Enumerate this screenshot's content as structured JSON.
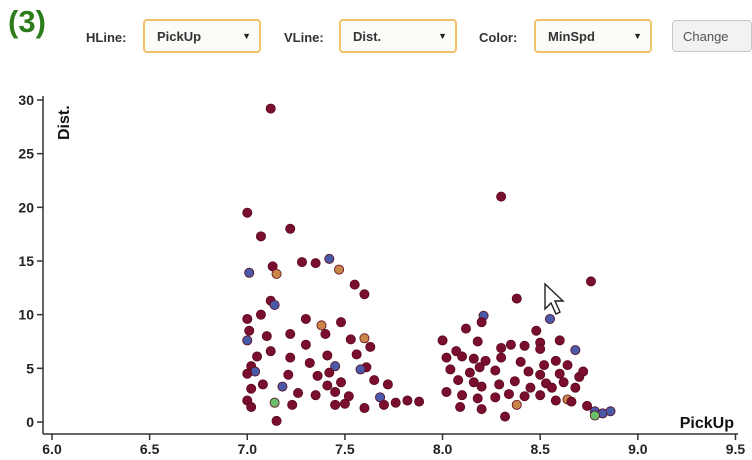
{
  "panel": {
    "label": "(3)"
  },
  "controls": {
    "hline": {
      "label": "HLine:",
      "value": "PickUp"
    },
    "vline": {
      "label": "VLine:",
      "value": "Dist."
    },
    "color": {
      "label": "Color:",
      "value": "MinSpd"
    },
    "change_button": "Change"
  },
  "colors": {
    "dark_red": "#7a0e2e",
    "blue": "#4a5aa8",
    "orange": "#c9854a",
    "green": "#6ac06a",
    "accent_border": "#f1c26a",
    "panel_label": "#2e7d1c"
  },
  "chart_data": {
    "type": "scatter",
    "xlabel": "PickUp",
    "ylabel": "Dist.",
    "xlim": [
      6.0,
      9.6
    ],
    "ylim": [
      0,
      30
    ],
    "xticks": [
      "6.0",
      "6.5",
      "7.0",
      "7.5",
      "8.0",
      "8.5",
      "9.0",
      "9.5"
    ],
    "yticks": [
      "0",
      "5",
      "10",
      "15",
      "20",
      "25",
      "30"
    ],
    "points": [
      {
        "x": 7.12,
        "y": 29.2,
        "c": "dark_red"
      },
      {
        "x": 8.3,
        "y": 21.0,
        "c": "dark_red"
      },
      {
        "x": 7.0,
        "y": 19.5,
        "c": "dark_red"
      },
      {
        "x": 7.22,
        "y": 18.0,
        "c": "dark_red"
      },
      {
        "x": 7.07,
        "y": 17.3,
        "c": "dark_red"
      },
      {
        "x": 7.42,
        "y": 15.2,
        "c": "blue"
      },
      {
        "x": 7.28,
        "y": 14.9,
        "c": "dark_red"
      },
      {
        "x": 7.35,
        "y": 14.8,
        "c": "dark_red"
      },
      {
        "x": 7.13,
        "y": 14.5,
        "c": "dark_red"
      },
      {
        "x": 7.01,
        "y": 13.9,
        "c": "blue"
      },
      {
        "x": 7.15,
        "y": 13.8,
        "c": "orange"
      },
      {
        "x": 7.47,
        "y": 14.2,
        "c": "orange"
      },
      {
        "x": 8.76,
        "y": 13.1,
        "c": "dark_red"
      },
      {
        "x": 7.55,
        "y": 12.8,
        "c": "dark_red"
      },
      {
        "x": 7.6,
        "y": 11.9,
        "c": "dark_red"
      },
      {
        "x": 7.12,
        "y": 11.3,
        "c": "dark_red"
      },
      {
        "x": 7.14,
        "y": 10.9,
        "c": "blue"
      },
      {
        "x": 8.38,
        "y": 11.5,
        "c": "dark_red"
      },
      {
        "x": 7.0,
        "y": 9.6,
        "c": "dark_red"
      },
      {
        "x": 7.07,
        "y": 10.0,
        "c": "dark_red"
      },
      {
        "x": 7.3,
        "y": 9.6,
        "c": "dark_red"
      },
      {
        "x": 7.38,
        "y": 9.0,
        "c": "orange"
      },
      {
        "x": 7.48,
        "y": 9.3,
        "c": "dark_red"
      },
      {
        "x": 8.21,
        "y": 9.9,
        "c": "blue"
      },
      {
        "x": 8.55,
        "y": 9.6,
        "c": "blue"
      },
      {
        "x": 8.2,
        "y": 9.3,
        "c": "dark_red"
      },
      {
        "x": 8.12,
        "y": 8.7,
        "c": "dark_red"
      },
      {
        "x": 8.48,
        "y": 8.5,
        "c": "dark_red"
      },
      {
        "x": 7.01,
        "y": 8.5,
        "c": "dark_red"
      },
      {
        "x": 7.1,
        "y": 8.0,
        "c": "dark_red"
      },
      {
        "x": 7.22,
        "y": 8.2,
        "c": "dark_red"
      },
      {
        "x": 7.4,
        "y": 8.2,
        "c": "dark_red"
      },
      {
        "x": 7.6,
        "y": 7.8,
        "c": "orange"
      },
      {
        "x": 7.53,
        "y": 7.7,
        "c": "dark_red"
      },
      {
        "x": 7.0,
        "y": 7.6,
        "c": "blue"
      },
      {
        "x": 8.0,
        "y": 7.6,
        "c": "dark_red"
      },
      {
        "x": 8.18,
        "y": 7.5,
        "c": "dark_red"
      },
      {
        "x": 8.35,
        "y": 7.2,
        "c": "dark_red"
      },
      {
        "x": 8.5,
        "y": 7.4,
        "c": "dark_red"
      },
      {
        "x": 8.42,
        "y": 7.1,
        "c": "dark_red"
      },
      {
        "x": 8.6,
        "y": 7.6,
        "c": "dark_red"
      },
      {
        "x": 8.68,
        "y": 6.7,
        "c": "blue"
      },
      {
        "x": 7.3,
        "y": 7.2,
        "c": "dark_red"
      },
      {
        "x": 7.63,
        "y": 7.0,
        "c": "dark_red"
      },
      {
        "x": 7.12,
        "y": 6.6,
        "c": "dark_red"
      },
      {
        "x": 8.07,
        "y": 6.6,
        "c": "dark_red"
      },
      {
        "x": 8.3,
        "y": 6.9,
        "c": "dark_red"
      },
      {
        "x": 8.5,
        "y": 6.8,
        "c": "dark_red"
      },
      {
        "x": 7.05,
        "y": 6.1,
        "c": "dark_red"
      },
      {
        "x": 7.22,
        "y": 6.0,
        "c": "dark_red"
      },
      {
        "x": 7.41,
        "y": 6.2,
        "c": "dark_red"
      },
      {
        "x": 7.56,
        "y": 6.3,
        "c": "dark_red"
      },
      {
        "x": 8.02,
        "y": 6.0,
        "c": "dark_red"
      },
      {
        "x": 8.1,
        "y": 6.1,
        "c": "dark_red"
      },
      {
        "x": 8.16,
        "y": 5.9,
        "c": "dark_red"
      },
      {
        "x": 8.22,
        "y": 5.7,
        "c": "dark_red"
      },
      {
        "x": 8.3,
        "y": 6.0,
        "c": "dark_red"
      },
      {
        "x": 8.4,
        "y": 5.6,
        "c": "dark_red"
      },
      {
        "x": 8.52,
        "y": 5.3,
        "c": "dark_red"
      },
      {
        "x": 8.58,
        "y": 5.7,
        "c": "dark_red"
      },
      {
        "x": 8.64,
        "y": 5.3,
        "c": "dark_red"
      },
      {
        "x": 7.32,
        "y": 5.5,
        "c": "dark_red"
      },
      {
        "x": 7.45,
        "y": 5.2,
        "c": "blue"
      },
      {
        "x": 7.61,
        "y": 5.1,
        "c": "dark_red"
      },
      {
        "x": 7.02,
        "y": 5.2,
        "c": "dark_red"
      },
      {
        "x": 7.04,
        "y": 4.7,
        "c": "blue"
      },
      {
        "x": 7.0,
        "y": 4.5,
        "c": "dark_red"
      },
      {
        "x": 7.21,
        "y": 4.4,
        "c": "dark_red"
      },
      {
        "x": 7.36,
        "y": 4.3,
        "c": "dark_red"
      },
      {
        "x": 7.42,
        "y": 4.6,
        "c": "dark_red"
      },
      {
        "x": 7.58,
        "y": 4.9,
        "c": "blue"
      },
      {
        "x": 8.04,
        "y": 4.9,
        "c": "dark_red"
      },
      {
        "x": 8.14,
        "y": 4.6,
        "c": "dark_red"
      },
      {
        "x": 8.19,
        "y": 5.1,
        "c": "dark_red"
      },
      {
        "x": 8.27,
        "y": 4.8,
        "c": "dark_red"
      },
      {
        "x": 8.44,
        "y": 4.7,
        "c": "dark_red"
      },
      {
        "x": 8.5,
        "y": 4.4,
        "c": "dark_red"
      },
      {
        "x": 8.6,
        "y": 4.5,
        "c": "dark_red"
      },
      {
        "x": 8.7,
        "y": 4.2,
        "c": "dark_red"
      },
      {
        "x": 8.72,
        "y": 4.7,
        "c": "dark_red"
      },
      {
        "x": 7.65,
        "y": 3.9,
        "c": "dark_red"
      },
      {
        "x": 7.72,
        "y": 3.5,
        "c": "dark_red"
      },
      {
        "x": 7.48,
        "y": 3.7,
        "c": "dark_red"
      },
      {
        "x": 7.41,
        "y": 3.4,
        "c": "dark_red"
      },
      {
        "x": 7.18,
        "y": 3.3,
        "c": "blue"
      },
      {
        "x": 7.08,
        "y": 3.5,
        "c": "dark_red"
      },
      {
        "x": 8.08,
        "y": 3.9,
        "c": "dark_red"
      },
      {
        "x": 8.16,
        "y": 3.7,
        "c": "dark_red"
      },
      {
        "x": 8.2,
        "y": 3.3,
        "c": "dark_red"
      },
      {
        "x": 8.29,
        "y": 3.5,
        "c": "dark_red"
      },
      {
        "x": 8.37,
        "y": 3.8,
        "c": "dark_red"
      },
      {
        "x": 8.45,
        "y": 3.2,
        "c": "dark_red"
      },
      {
        "x": 8.53,
        "y": 3.6,
        "c": "dark_red"
      },
      {
        "x": 8.56,
        "y": 3.2,
        "c": "dark_red"
      },
      {
        "x": 8.62,
        "y": 3.7,
        "c": "dark_red"
      },
      {
        "x": 8.68,
        "y": 3.2,
        "c": "dark_red"
      },
      {
        "x": 7.02,
        "y": 3.1,
        "c": "dark_red"
      },
      {
        "x": 7.26,
        "y": 2.7,
        "c": "dark_red"
      },
      {
        "x": 7.35,
        "y": 2.5,
        "c": "dark_red"
      },
      {
        "x": 7.45,
        "y": 2.8,
        "c": "dark_red"
      },
      {
        "x": 7.52,
        "y": 2.4,
        "c": "dark_red"
      },
      {
        "x": 7.68,
        "y": 2.3,
        "c": "blue"
      },
      {
        "x": 7.76,
        "y": 1.8,
        "c": "dark_red"
      },
      {
        "x": 7.82,
        "y": 2.0,
        "c": "dark_red"
      },
      {
        "x": 7.88,
        "y": 1.9,
        "c": "dark_red"
      },
      {
        "x": 8.02,
        "y": 2.8,
        "c": "dark_red"
      },
      {
        "x": 8.1,
        "y": 2.5,
        "c": "dark_red"
      },
      {
        "x": 8.18,
        "y": 2.2,
        "c": "dark_red"
      },
      {
        "x": 8.27,
        "y": 2.3,
        "c": "dark_red"
      },
      {
        "x": 8.34,
        "y": 2.6,
        "c": "dark_red"
      },
      {
        "x": 8.42,
        "y": 2.4,
        "c": "dark_red"
      },
      {
        "x": 8.5,
        "y": 2.5,
        "c": "dark_red"
      },
      {
        "x": 8.58,
        "y": 2.0,
        "c": "dark_red"
      },
      {
        "x": 8.64,
        "y": 2.1,
        "c": "orange"
      },
      {
        "x": 8.66,
        "y": 1.9,
        "c": "dark_red"
      },
      {
        "x": 7.0,
        "y": 2.0,
        "c": "dark_red"
      },
      {
        "x": 7.14,
        "y": 1.8,
        "c": "green"
      },
      {
        "x": 7.23,
        "y": 1.6,
        "c": "dark_red"
      },
      {
        "x": 7.45,
        "y": 1.6,
        "c": "dark_red"
      },
      {
        "x": 7.5,
        "y": 1.7,
        "c": "dark_red"
      },
      {
        "x": 7.6,
        "y": 1.3,
        "c": "dark_red"
      },
      {
        "x": 7.7,
        "y": 1.6,
        "c": "dark_red"
      },
      {
        "x": 7.02,
        "y": 1.4,
        "c": "dark_red"
      },
      {
        "x": 8.09,
        "y": 1.4,
        "c": "dark_red"
      },
      {
        "x": 8.2,
        "y": 1.2,
        "c": "dark_red"
      },
      {
        "x": 8.38,
        "y": 1.6,
        "c": "orange"
      },
      {
        "x": 8.32,
        "y": 0.5,
        "c": "dark_red"
      },
      {
        "x": 8.74,
        "y": 1.5,
        "c": "dark_red"
      },
      {
        "x": 8.78,
        "y": 1.0,
        "c": "blue"
      },
      {
        "x": 8.82,
        "y": 0.8,
        "c": "blue"
      },
      {
        "x": 8.78,
        "y": 0.6,
        "c": "green"
      },
      {
        "x": 8.86,
        "y": 1.0,
        "c": "blue"
      },
      {
        "x": 7.15,
        "y": 0.1,
        "c": "dark_red"
      }
    ]
  }
}
